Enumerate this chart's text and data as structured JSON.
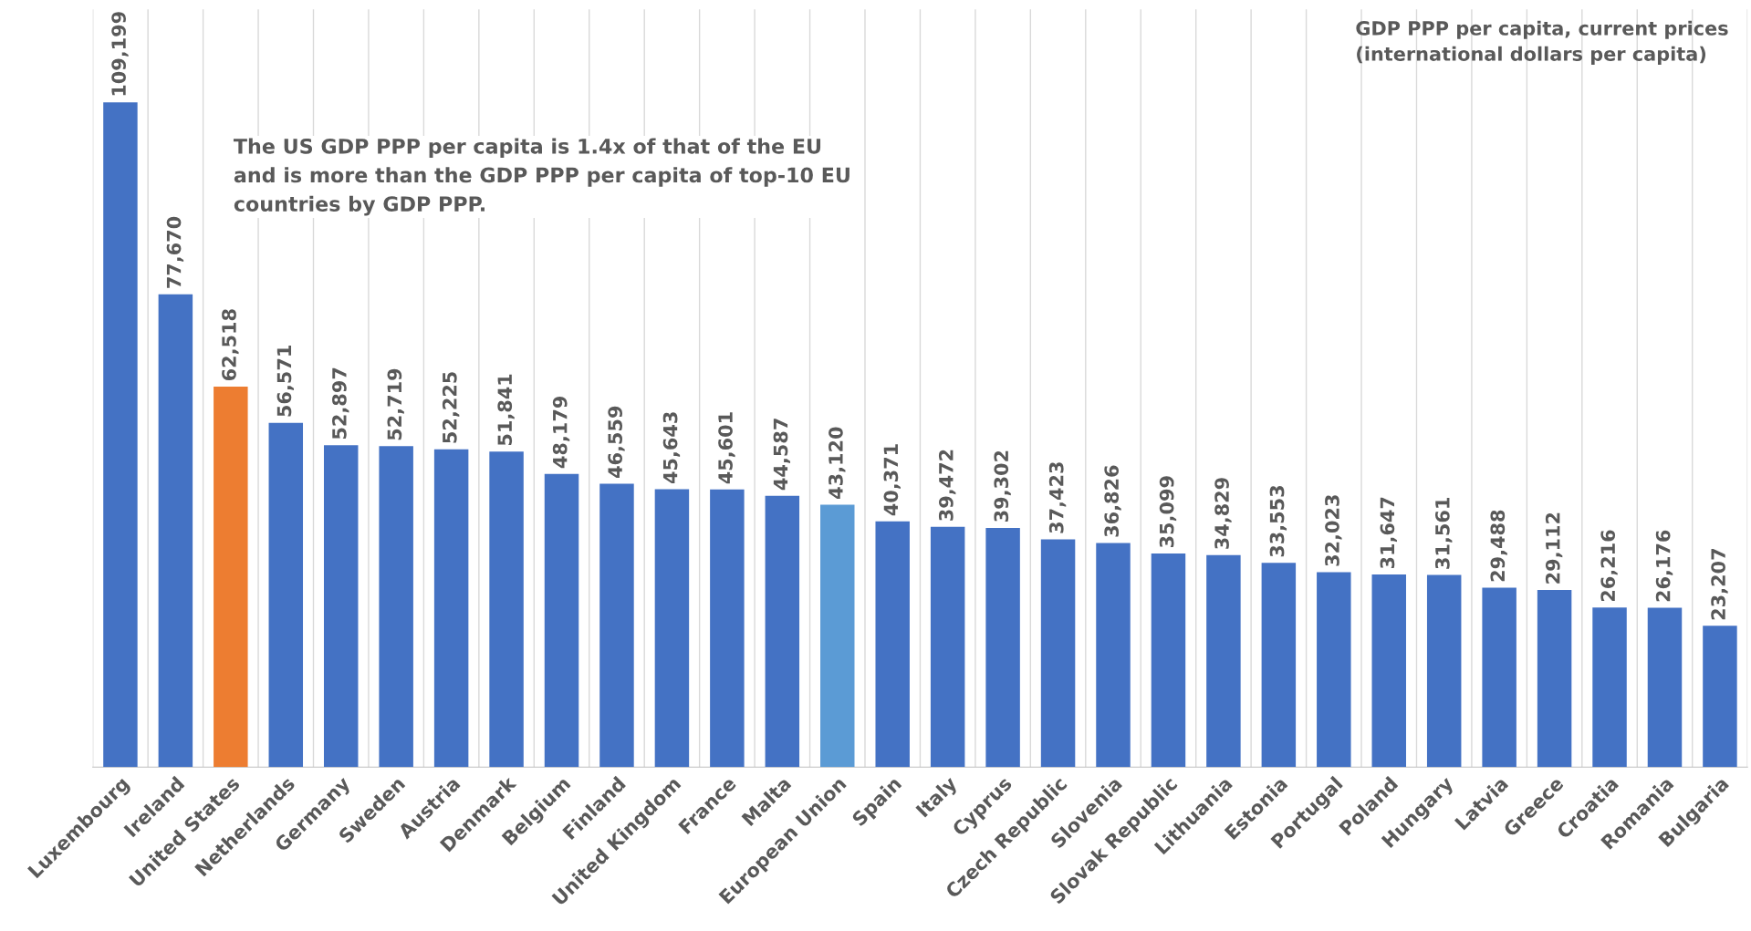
{
  "chart_data": {
    "type": "bar",
    "title": "GDP PPP per capita, current prices\n(international dollars per capita)",
    "annotations": [
      "The US GDP PPP per capita is 1.4x of that of the EU\nand is more than the GDP PPP per capita of top-10 EU\ncountries by GDP PPP."
    ],
    "categories": [
      "Luxembourg",
      "Ireland",
      "United States",
      "Netherlands",
      "Germany",
      "Sweden",
      "Austria",
      "Denmark",
      "Belgium",
      "Finland",
      "United Kingdom",
      "France",
      "Malta",
      "European Union",
      "Spain",
      "Italy",
      "Cyprus",
      "Czech Republic",
      "Slovenia",
      "Slovak Republic",
      "Lithuania",
      "Estonia",
      "Portugal",
      "Poland",
      "Hungary",
      "Latvia",
      "Greece",
      "Croatia",
      "Romania",
      "Bulgaria"
    ],
    "values": [
      109199,
      77670,
      62518,
      56571,
      52897,
      52719,
      52225,
      51841,
      48179,
      46559,
      45643,
      45601,
      44587,
      43120,
      40371,
      39472,
      39302,
      37423,
      36826,
      35099,
      34829,
      33553,
      32023,
      31647,
      31561,
      29488,
      29112,
      26216,
      26176,
      23207
    ],
    "colors": [
      "#4472c4",
      "#4472c4",
      "#ed7d31",
      "#4472c4",
      "#4472c4",
      "#4472c4",
      "#4472c4",
      "#4472c4",
      "#4472c4",
      "#4472c4",
      "#4472c4",
      "#4472c4",
      "#4472c4",
      "#5b9bd5",
      "#4472c4",
      "#4472c4",
      "#4472c4",
      "#4472c4",
      "#4472c4",
      "#4472c4",
      "#4472c4",
      "#4472c4",
      "#4472c4",
      "#4472c4",
      "#4472c4",
      "#4472c4",
      "#4472c4",
      "#4472c4",
      "#4472c4",
      "#4472c4"
    ],
    "value_labels": [
      "109,199",
      "77,670",
      "62,518",
      "56,571",
      "52,897",
      "52,719",
      "52,225",
      "51,841",
      "48,179",
      "46,559",
      "45,643",
      "45,601",
      "44,587",
      "43,120",
      "40,371",
      "39,472",
      "39,302",
      "37,423",
      "36,826",
      "35,099",
      "34,829",
      "33,553",
      "32,023",
      "31,647",
      "31,561",
      "29,488",
      "29,112",
      "26,216",
      "26,176",
      "23,207"
    ],
    "grid": "x",
    "legend": false,
    "tick_labels": "x"
  }
}
